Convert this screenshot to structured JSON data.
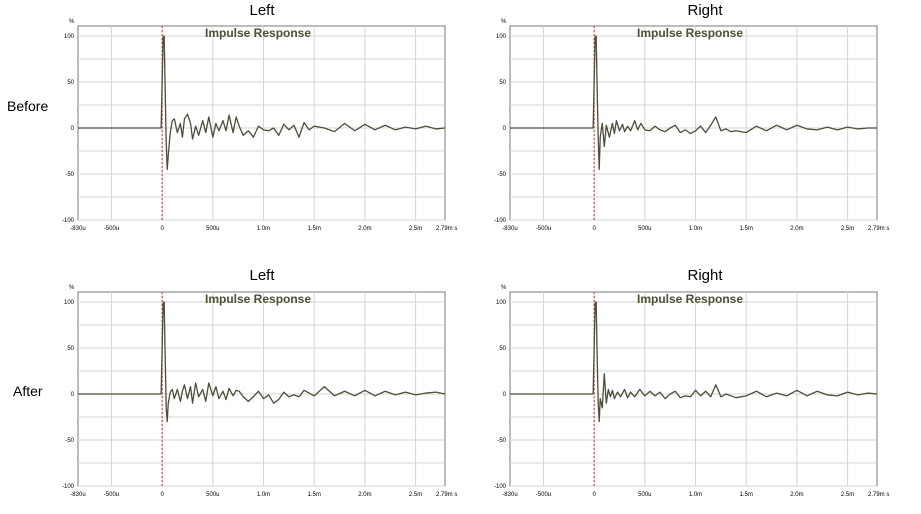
{
  "row_labels": [
    "Before",
    "After"
  ],
  "chart_data": [
    {
      "type": "line",
      "title": "Left",
      "row": "Before",
      "plot_label": "Impulse Response",
      "y_unit": "%",
      "x_unit": "s",
      "xlim": [
        -0.00083,
        0.00279
      ],
      "ylim": [
        -100,
        100
      ],
      "grid": true,
      "x_tick_labels": [
        "-830u",
        "-500u",
        "0",
        "500u",
        "1.0m",
        "1.5m",
        "2.0m",
        "2.5m",
        "2.79m s"
      ],
      "y_tick_labels": [
        "100",
        "50",
        "0",
        "-50",
        "-100"
      ],
      "series": [
        {
          "x": [
            -0.00083,
            -1e-05,
            0,
            1e-05,
            2e-05,
            3e-05,
            4e-05,
            5e-05,
            6e-05,
            8e-05,
            0.0001,
            0.00012,
            0.00015,
            0.00018,
            0.0002,
            0.00022,
            0.00025,
            0.00028,
            0.0003,
            0.00033,
            0.00036,
            0.0004,
            0.00043,
            0.00046,
            0.0005,
            0.00053,
            0.00056,
            0.0006,
            0.00063,
            0.00066,
            0.0007,
            0.00073,
            0.00076,
            0.0008,
            0.00085,
            0.0009,
            0.00095,
            0.001,
            0.00105,
            0.0011,
            0.00115,
            0.0012,
            0.00125,
            0.0013,
            0.00135,
            0.0014,
            0.00145,
            0.0015,
            0.0016,
            0.0017,
            0.0018,
            0.0019,
            0.002,
            0.0021,
            0.0022,
            0.0023,
            0.0024,
            0.0025,
            0.0026,
            0.0027,
            0.00279
          ],
          "y": [
            0,
            0,
            50,
            99,
            100,
            40,
            -15,
            -45,
            -30,
            -5,
            8,
            10,
            -5,
            5,
            -10,
            10,
            15,
            5,
            -12,
            2,
            -8,
            8,
            -5,
            12,
            -10,
            5,
            -3,
            8,
            -3,
            14,
            -5,
            12,
            2,
            -8,
            -3,
            -10,
            2,
            -2,
            -3,
            0,
            -8,
            4,
            -2,
            3,
            -10,
            6,
            -2,
            2,
            0,
            -4,
            5,
            -3,
            4,
            -2,
            3,
            -2,
            1,
            -1,
            2,
            -1,
            0
          ]
        }
      ]
    },
    {
      "type": "line",
      "title": "Right",
      "row": "Before",
      "plot_label": "Impulse Response",
      "y_unit": "%",
      "x_unit": "s",
      "xlim": [
        -0.00083,
        0.00279
      ],
      "ylim": [
        -100,
        100
      ],
      "grid": true,
      "x_tick_labels": [
        "-830u",
        "-500u",
        "0",
        "500u",
        "1.0m",
        "1.5m",
        "2.0m",
        "2.5m",
        "2.79m s"
      ],
      "y_tick_labels": [
        "100",
        "50",
        "0",
        "-50",
        "-100"
      ],
      "series": [
        {
          "x": [
            -0.00083,
            -1e-05,
            0,
            1e-05,
            2e-05,
            3e-05,
            4e-05,
            5e-05,
            6e-05,
            8e-05,
            0.0001,
            0.00012,
            0.00015,
            0.00018,
            0.0002,
            0.00022,
            0.00025,
            0.00028,
            0.0003,
            0.00033,
            0.00036,
            0.0004,
            0.00043,
            0.00046,
            0.0005,
            0.00055,
            0.0006,
            0.00065,
            0.0007,
            0.00075,
            0.0008,
            0.00085,
            0.0009,
            0.00095,
            0.001,
            0.00105,
            0.0011,
            0.00115,
            0.0012,
            0.00125,
            0.0013,
            0.00135,
            0.0014,
            0.0015,
            0.0016,
            0.0017,
            0.0018,
            0.0019,
            0.002,
            0.0021,
            0.0022,
            0.0023,
            0.0024,
            0.0025,
            0.0026,
            0.0027,
            0.00279
          ],
          "y": [
            0,
            0,
            50,
            99,
            100,
            40,
            -10,
            -45,
            -10,
            5,
            -20,
            3,
            -10,
            5,
            -6,
            8,
            -3,
            4,
            -4,
            2,
            -3,
            8,
            -2,
            5,
            -2,
            -3,
            2,
            -2,
            -4,
            0,
            3,
            -5,
            -2,
            -6,
            -3,
            2,
            -5,
            3,
            12,
            -3,
            -1,
            -4,
            -3,
            -5,
            2,
            -3,
            3,
            -2,
            3,
            -1,
            -2,
            1,
            -2,
            1,
            -1,
            0,
            0
          ]
        }
      ]
    },
    {
      "type": "line",
      "title": "Left",
      "row": "After",
      "plot_label": "Impulse Response",
      "y_unit": "%",
      "x_unit": "s",
      "xlim": [
        -0.00083,
        0.00279
      ],
      "ylim": [
        -100,
        100
      ],
      "grid": true,
      "x_tick_labels": [
        "-830u",
        "-500u",
        "0",
        "500u",
        "1.0m",
        "1.5m",
        "2.0m",
        "2.5m",
        "2.79m s"
      ],
      "y_tick_labels": [
        "100",
        "50",
        "0",
        "-50",
        "-100"
      ],
      "series": [
        {
          "x": [
            -0.00083,
            -1e-05,
            0,
            1e-05,
            2e-05,
            3e-05,
            4e-05,
            5e-05,
            6e-05,
            8e-05,
            0.0001,
            0.00012,
            0.00015,
            0.00018,
            0.0002,
            0.00022,
            0.00025,
            0.00028,
            0.0003,
            0.00033,
            0.00036,
            0.0004,
            0.00043,
            0.00046,
            0.0005,
            0.00053,
            0.00056,
            0.0006,
            0.00063,
            0.00066,
            0.0007,
            0.00073,
            0.00076,
            0.0008,
            0.00085,
            0.0009,
            0.00095,
            0.001,
            0.00105,
            0.0011,
            0.00115,
            0.0012,
            0.00125,
            0.0013,
            0.00135,
            0.0014,
            0.0015,
            0.0016,
            0.0017,
            0.0018,
            0.0019,
            0.002,
            0.0021,
            0.0022,
            0.0023,
            0.0024,
            0.0025,
            0.0026,
            0.0027,
            0.00279
          ],
          "y": [
            0,
            0,
            50,
            99,
            100,
            40,
            -15,
            -30,
            -10,
            2,
            5,
            -5,
            5,
            -8,
            3,
            10,
            -5,
            8,
            -10,
            12,
            -3,
            5,
            -8,
            12,
            -2,
            8,
            -5,
            3,
            -6,
            6,
            -2,
            4,
            3,
            -3,
            -8,
            -3,
            3,
            -5,
            -1,
            -10,
            -6,
            2,
            -3,
            -1,
            -3,
            4,
            -2,
            8,
            -2,
            3,
            -2,
            4,
            -2,
            3,
            -1,
            2,
            -1,
            1,
            2,
            0
          ]
        }
      ]
    },
    {
      "type": "line",
      "title": "Right",
      "row": "After",
      "plot_label": "Impulse Response",
      "y_unit": "%",
      "x_unit": "s",
      "xlim": [
        -0.00083,
        0.00279
      ],
      "ylim": [
        -100,
        100
      ],
      "grid": true,
      "x_tick_labels": [
        "-830u",
        "-500u",
        "0",
        "500u",
        "1.0m",
        "1.5m",
        "2.0m",
        "2.5m",
        "2.79m s"
      ],
      "y_tick_labels": [
        "100",
        "50",
        "0",
        "-50",
        "-100"
      ],
      "series": [
        {
          "x": [
            -0.00083,
            -1e-05,
            0,
            1e-05,
            2e-05,
            3e-05,
            4e-05,
            5e-05,
            6e-05,
            8e-05,
            0.0001,
            0.00012,
            0.00014,
            0.00016,
            0.00018,
            0.0002,
            0.00023,
            0.00026,
            0.0003,
            0.00033,
            0.00036,
            0.0004,
            0.00045,
            0.0005,
            0.00055,
            0.0006,
            0.00065,
            0.0007,
            0.00075,
            0.0008,
            0.00085,
            0.0009,
            0.00095,
            0.001,
            0.00105,
            0.0011,
            0.00115,
            0.0012,
            0.00125,
            0.0013,
            0.0014,
            0.0015,
            0.0016,
            0.0017,
            0.0018,
            0.0019,
            0.002,
            0.0021,
            0.0022,
            0.0023,
            0.0024,
            0.0025,
            0.0026,
            0.0027,
            0.00279
          ],
          "y": [
            0,
            0,
            50,
            99,
            100,
            40,
            -10,
            -30,
            -5,
            -15,
            22,
            -10,
            5,
            -3,
            4,
            -5,
            2,
            -3,
            5,
            -4,
            2,
            -3,
            5,
            -2,
            3,
            -2,
            2,
            -5,
            0,
            3,
            -4,
            -2,
            -3,
            4,
            -2,
            3,
            -3,
            10,
            -3,
            0,
            -4,
            -2,
            3,
            -3,
            1,
            -2,
            4,
            -2,
            3,
            -1,
            -2,
            2,
            -1,
            1,
            0
          ]
        }
      ]
    }
  ]
}
